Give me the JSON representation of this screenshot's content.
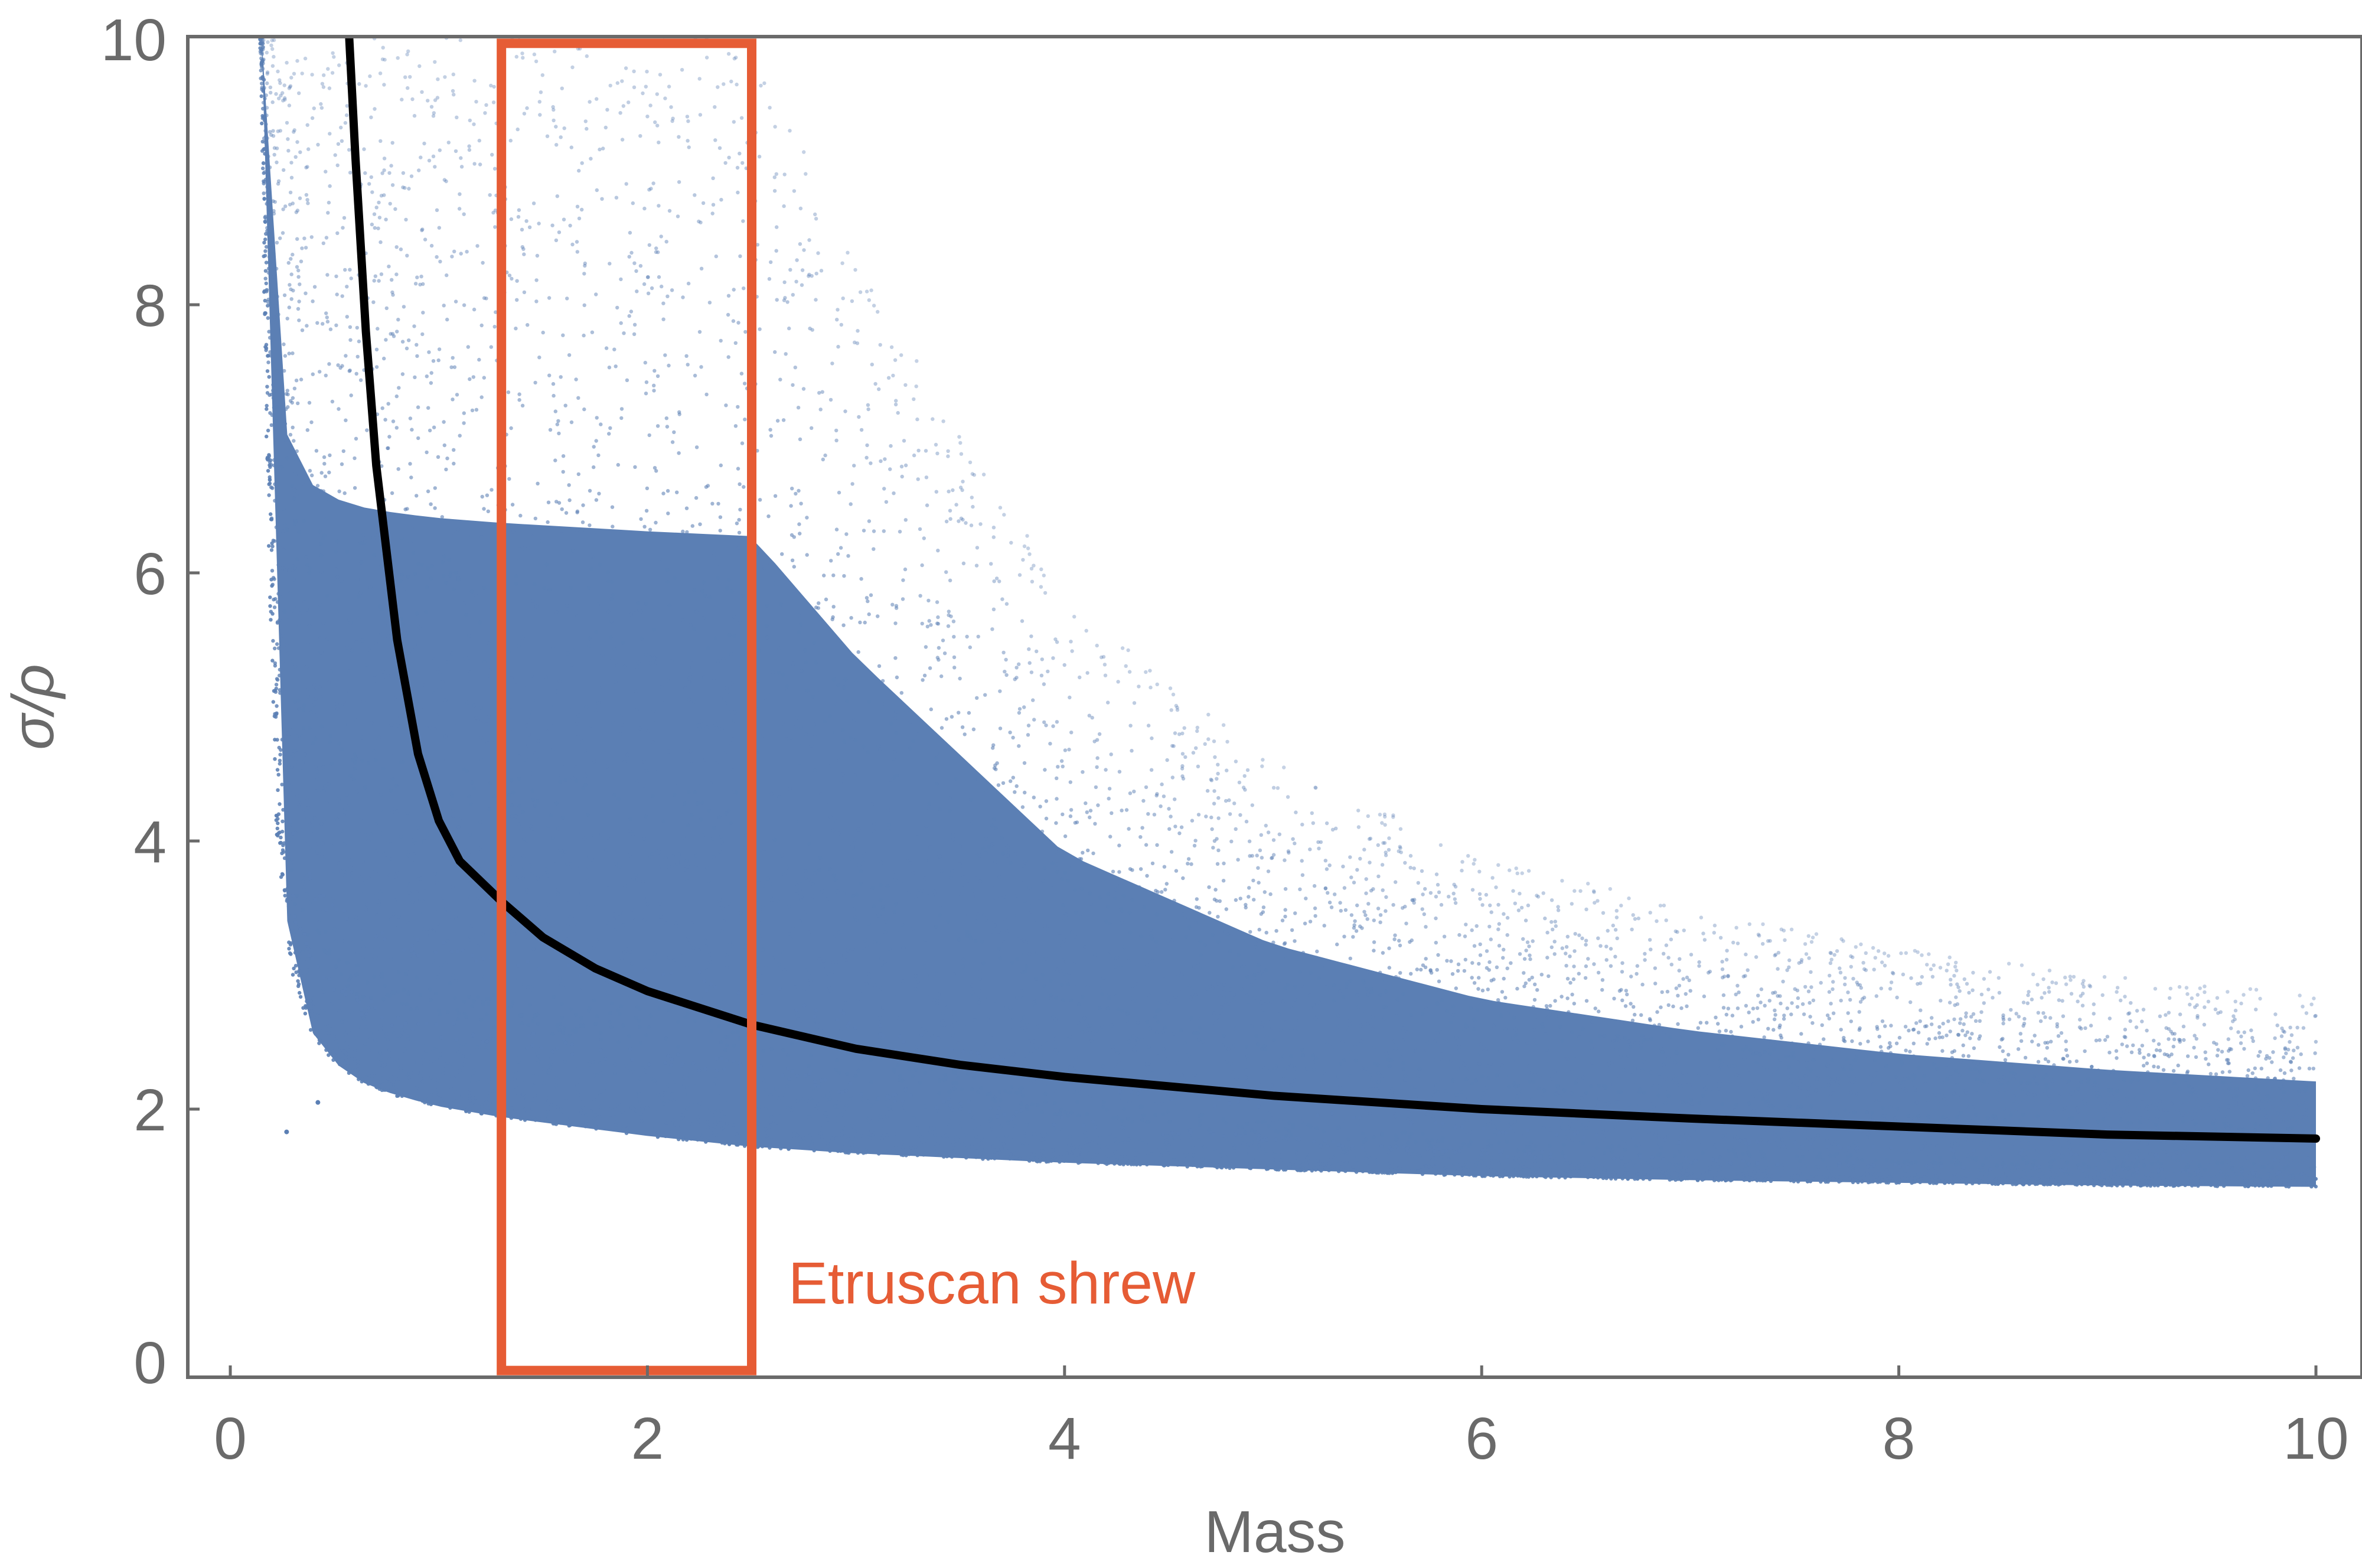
{
  "chart_data": {
    "type": "scatter",
    "xlabel": "Mass",
    "ylabel": "σ/ρ",
    "xlim": [
      -0.2,
      10.2
    ],
    "ylim": [
      0,
      10
    ],
    "xticks": [
      0,
      2,
      4,
      6,
      8,
      10
    ],
    "yticks": [
      0,
      2,
      4,
      6,
      8,
      10
    ],
    "grid": false,
    "series": [
      {
        "kind": "scatter",
        "color": "#5b7fb4",
        "envelope": {
          "x": [
            0.15,
            0.18,
            0.22,
            0.3,
            0.4,
            0.5,
            0.6,
            0.8,
            1.0,
            1.3,
            1.6,
            2.0,
            2.5,
            3.0,
            4.0,
            5.0,
            6.0,
            7.0,
            8.0,
            9.0,
            10.0
          ],
          "lower": [
            10.0,
            7.0,
            4.2,
            3.0,
            2.55,
            2.35,
            2.22,
            2.1,
            2.02,
            1.94,
            1.88,
            1.8,
            1.72,
            1.67,
            1.6,
            1.55,
            1.5,
            1.47,
            1.45,
            1.43,
            1.42
          ],
          "upper": [
            10.0,
            10.0,
            10.0,
            10.0,
            10.0,
            10.0,
            10.0,
            10.0,
            10.0,
            10.0,
            10.0,
            10.0,
            10.0,
            8.4,
            5.8,
            4.6,
            3.9,
            3.5,
            3.2,
            3.0,
            2.85
          ]
        },
        "outliers": [
          {
            "x": 0.27,
            "y": 1.83
          },
          {
            "x": 0.42,
            "y": 2.05
          }
        ]
      },
      {
        "kind": "line",
        "color": "#000000",
        "x": [
          0.57,
          0.6,
          0.65,
          0.7,
          0.8,
          0.9,
          1.0,
          1.1,
          1.3,
          1.5,
          1.75,
          2.0,
          2.5,
          3.0,
          3.5,
          4.0,
          5.0,
          6.0,
          7.0,
          8.0,
          9.0,
          10.0
        ],
        "y": [
          10.0,
          9.1,
          7.8,
          6.8,
          5.5,
          4.65,
          4.15,
          3.85,
          3.55,
          3.28,
          3.05,
          2.88,
          2.63,
          2.45,
          2.33,
          2.24,
          2.1,
          2.0,
          1.93,
          1.87,
          1.81,
          1.78
        ]
      }
    ],
    "highlight": {
      "label": "Etruscan shrew",
      "color": "#e65c35",
      "xrange": [
        1.3,
        2.5
      ],
      "yrange": [
        0.05,
        9.95
      ]
    }
  }
}
